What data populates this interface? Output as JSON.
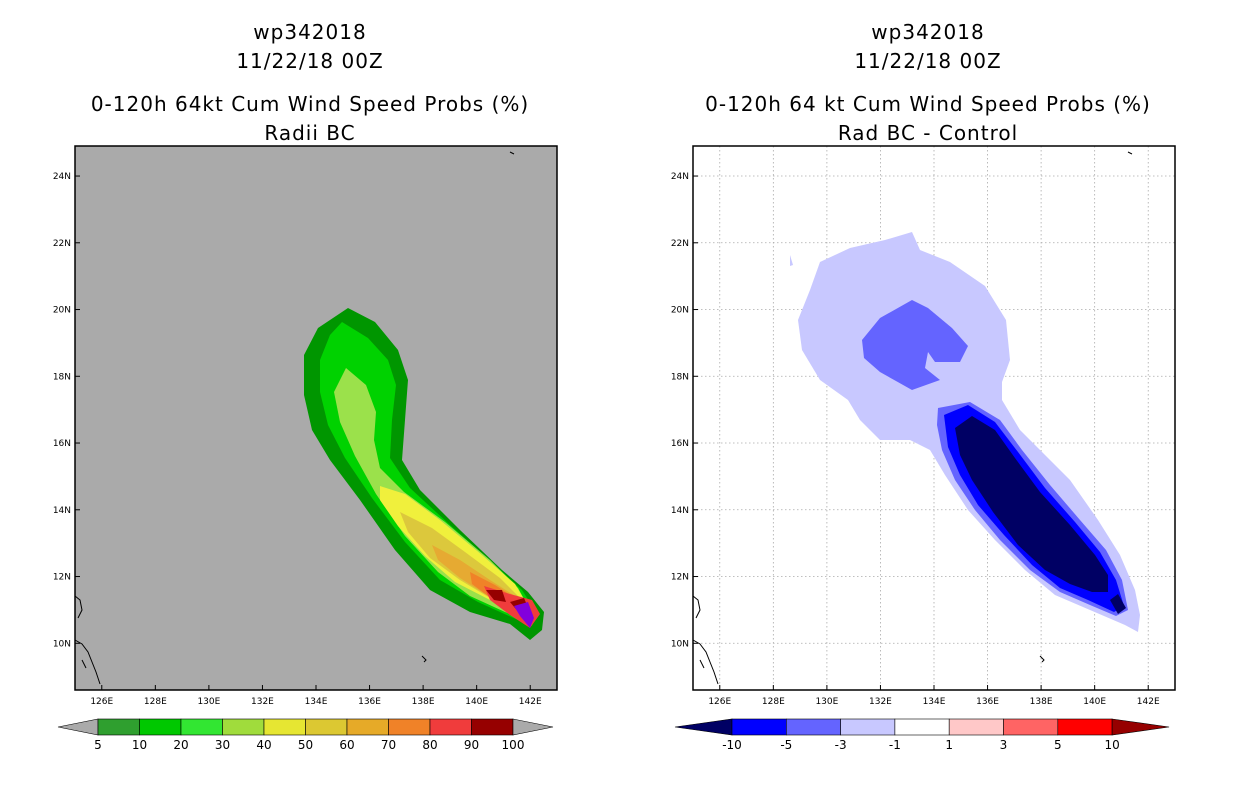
{
  "left_panel": {
    "title_lines": [
      "wp342018",
      "11/22/18 00Z",
      "0-120h 64kt Cum Wind Speed Probs (%)",
      "Radii BC"
    ],
    "colorbar": {
      "labels": [
        "5",
        "10",
        "20",
        "30",
        "40",
        "50",
        "60",
        "70",
        "80",
        "90",
        "100"
      ],
      "colors": [
        "#2f9f2f",
        "#00c800",
        "#32e632",
        "#a0dc3c",
        "#e6e632",
        "#dcc832",
        "#e6aa28",
        "#f08228",
        "#f03c3c",
        "#960000",
        "#8200dc",
        "#aaaaaa"
      ]
    }
  },
  "right_panel": {
    "title_lines": [
      "wp342018",
      "11/22/18 00Z",
      "0-120h 64 kt Cum Wind Speed Probs (%)",
      "Rad BC - Control"
    ],
    "colorbar": {
      "labels": [
        "-10",
        "-5",
        "-3",
        "-1",
        "1",
        "3",
        "5",
        "10"
      ],
      "colors": [
        "#000064",
        "#0000ff",
        "#6464ff",
        "#c8c8ff",
        "#ffffff",
        "#ffc8c8",
        "#ff6464",
        "#ff0000",
        "#960000"
      ]
    }
  },
  "chart_data": [
    {
      "type": "heatmap",
      "title": "0-120h 64kt Cum Wind Speed Probs (%) - Radii BC",
      "storm": "wp342018",
      "time": "11/22/18 00Z",
      "x_ticks": [
        "126E",
        "128E",
        "130E",
        "132E",
        "134E",
        "136E",
        "138E",
        "140E",
        "142E"
      ],
      "y_ticks": [
        "10N",
        "12N",
        "14N",
        "16N",
        "18N",
        "20N",
        "22N",
        "24N"
      ],
      "xlim": [
        125.0,
        143.0
      ],
      "ylim": [
        8.6,
        24.9
      ],
      "background": "#aaaaaa",
      "legend": "bottom",
      "levels_pct": [
        5,
        10,
        20,
        30,
        40,
        50,
        60,
        70,
        80,
        90,
        100
      ],
      "max_prob_location": {
        "lon": 141.8,
        "lat": 10.8
      },
      "track_axis": [
        [
          134.9,
          18.8
        ],
        [
          135.4,
          17.0
        ],
        [
          135.9,
          16.0
        ],
        [
          136.6,
          14.8
        ],
        [
          137.7,
          13.6
        ],
        [
          139.0,
          12.4
        ],
        [
          140.3,
          11.6
        ],
        [
          141.2,
          11.2
        ],
        [
          141.8,
          10.8
        ]
      ]
    },
    {
      "type": "heatmap",
      "title": "0-120h 64 kt Cum Wind Speed Probs (%) - Rad BC - Control",
      "storm": "wp342018",
      "time": "11/22/18 00Z",
      "x_ticks": [
        "126E",
        "128E",
        "130E",
        "132E",
        "134E",
        "136E",
        "138E",
        "140E",
        "142E"
      ],
      "y_ticks": [
        "10N",
        "12N",
        "14N",
        "16N",
        "18N",
        "20N",
        "22N",
        "24N"
      ],
      "xlim": [
        125.0,
        143.0
      ],
      "ylim": [
        8.6,
        24.9
      ],
      "background": "#ffffff",
      "legend": "bottom",
      "levels_diff": [
        -10,
        -5,
        -3,
        -1,
        1,
        3,
        5,
        10
      ],
      "min_diff_location": {
        "lon": 136.5,
        "lat": 15.5
      }
    }
  ]
}
